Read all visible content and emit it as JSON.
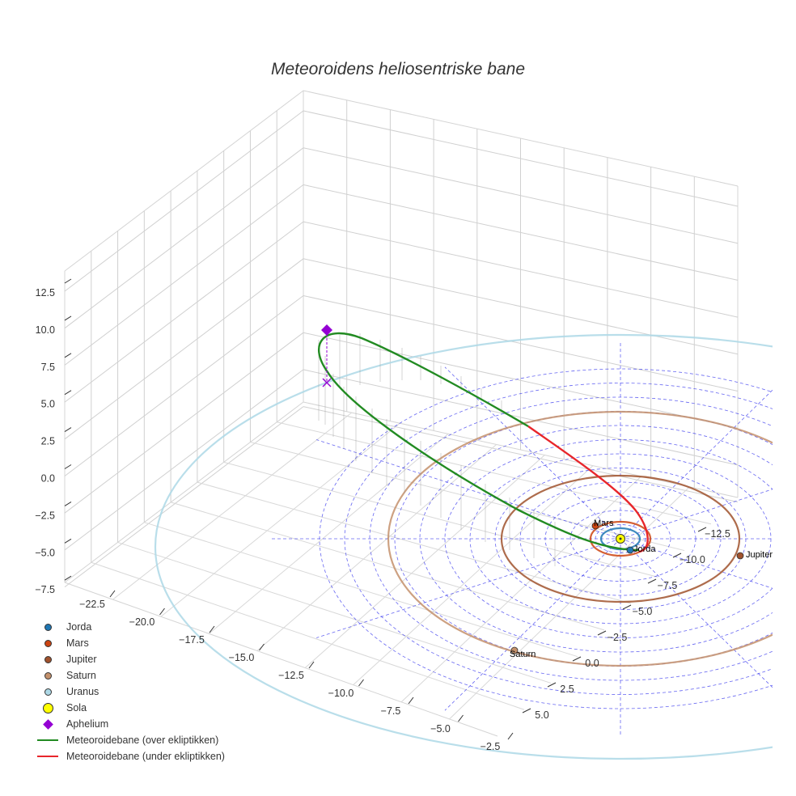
{
  "chart_data": {
    "type": "line",
    "title": "Meteoroidens heliosentriske bane",
    "z_ticks": [
      "12.5",
      "10.0",
      "7.5",
      "5.0",
      "2.5",
      "0.0",
      "−2.5",
      "−5.0",
      "−7.5"
    ],
    "x_ticks": [
      "−22.5",
      "−20.0",
      "−17.5",
      "−15.0",
      "−12.5",
      "−10.0",
      "−7.5",
      "−5.0",
      "−2.5"
    ],
    "y_ticks": [
      "−12.5",
      "−10.0",
      "−7.5",
      "−5.0",
      "−2.5",
      "0.0",
      "2.5",
      "5.0"
    ],
    "bodies": [
      {
        "name": "Jorda",
        "orbit_radius_au": 1.0,
        "color": "#1f77b4"
      },
      {
        "name": "Mars",
        "orbit_radius_au": 1.52,
        "color": "#cc4411"
      },
      {
        "name": "Jupiter",
        "orbit_radius_au": 5.2,
        "color": "#a0522d"
      },
      {
        "name": "Saturn",
        "orbit_radius_au": 9.5,
        "color": "#c4916c"
      },
      {
        "name": "Uranus",
        "orbit_radius_au": 19.2,
        "color": "#add8e6"
      }
    ],
    "sun_label": "Sola",
    "aphelion": {
      "label": "Aphelium",
      "z": 10.0
    },
    "orbit_segments": [
      {
        "name": "Meteoroidebane (over ekliptikken)",
        "color": "#228b22"
      },
      {
        "name": "Meteoroidebane (under ekliptikken)",
        "color": "#e8262b"
      }
    ]
  },
  "legend": [
    {
      "label": "Jorda",
      "kind": "dot",
      "color": "#1f77b4"
    },
    {
      "label": "Mars",
      "kind": "dot",
      "color": "#cc4411"
    },
    {
      "label": "Jupiter",
      "kind": "dot",
      "color": "#a0522d"
    },
    {
      "label": "Saturn",
      "kind": "dot",
      "color": "#c4916c"
    },
    {
      "label": "Uranus",
      "kind": "dot",
      "color": "#add8e6"
    },
    {
      "label": "Sola",
      "kind": "bigdot",
      "color": "#ffff00"
    },
    {
      "label": "Aphelium",
      "kind": "diamond",
      "color": "#9400d3"
    },
    {
      "label": "Meteoroidebane (over ekliptikken)",
      "kind": "line",
      "color": "#228b22"
    },
    {
      "label": "Meteoroidebane (under ekliptikken)",
      "kind": "line",
      "color": "#e8262b"
    }
  ]
}
